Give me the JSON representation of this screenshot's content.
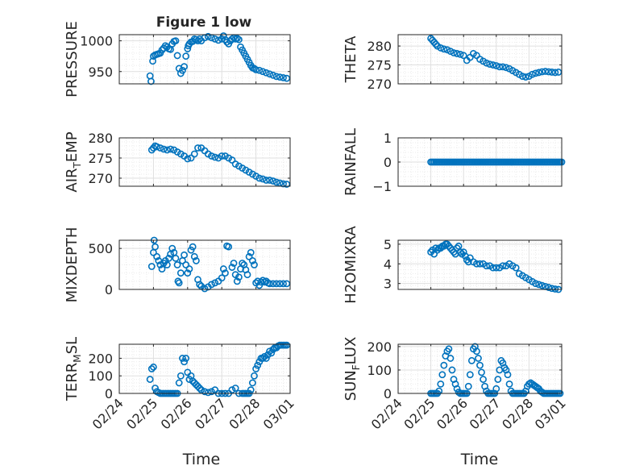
{
  "figure": {
    "title": "Figure 1 low",
    "xlabel": "Time",
    "x_tick_labels": [
      "02/24",
      "02/25",
      "02/26",
      "02/27",
      "02/28",
      "03/01"
    ]
  },
  "colors": {
    "marker": "#0072BD",
    "axis": "#262626",
    "grid": "#dfdfdf",
    "minor_grid": "#ebebeb"
  },
  "chart_data": [
    {
      "type": "scatter",
      "marker": "circle",
      "ylabel": "PRESSURE",
      "ylim": [
        930,
        1010
      ],
      "yticks": [
        950,
        1000
      ],
      "x_range": [
        "02/24",
        "03/01"
      ],
      "grid": "on",
      "x": [
        0.9,
        0.93,
        0.98,
        1.0,
        1.05,
        1.1,
        1.15,
        1.2,
        1.25,
        1.3,
        1.35,
        1.4,
        1.45,
        1.5,
        1.55,
        1.6,
        1.65,
        1.7,
        1.75,
        1.8,
        1.85,
        1.9,
        1.95,
        2.0,
        2.02,
        2.05,
        2.1,
        2.15,
        2.2,
        2.25,
        2.3,
        2.35,
        2.4,
        2.5,
        2.6,
        2.7,
        2.8,
        2.9,
        3.0,
        3.05,
        3.1,
        3.15,
        3.2,
        3.25,
        3.3,
        3.35,
        3.4,
        3.45,
        3.5,
        3.55,
        3.6,
        3.65,
        3.7,
        3.75,
        3.8,
        3.85,
        3.9,
        3.95,
        4.0,
        4.1,
        4.2,
        4.3,
        4.4,
        4.5,
        4.6,
        4.7,
        4.8,
        4.9
      ],
      "y": [
        943,
        934,
        967,
        975,
        977,
        978,
        979,
        980,
        985,
        988,
        992,
        990,
        987,
        986,
        995,
        999,
        1000,
        976,
        955,
        947,
        952,
        958,
        975,
        987,
        992,
        995,
        998,
        999,
        1003,
        1002,
        1000,
        1003,
        1000,
        1005,
        1007,
        1005,
        1003,
        1001,
        1003,
        1008,
        1002,
        998,
        995,
        1000,
        1003,
        1005,
        1003,
        1004,
        1002,
        990,
        985,
        980,
        975,
        970,
        965,
        960,
        956,
        955,
        953,
        952,
        950,
        948,
        946,
        944,
        942,
        941,
        940,
        939
      ]
    },
    {
      "type": "scatter",
      "marker": "circle",
      "ylabel": "THETA",
      "ylim": [
        270,
        283
      ],
      "yticks": [
        270,
        275,
        280
      ],
      "x_range": [
        "02/24",
        "03/01"
      ],
      "grid": "on",
      "x": [
        1.0,
        1.05,
        1.1,
        1.15,
        1.2,
        1.3,
        1.4,
        1.5,
        1.6,
        1.7,
        1.8,
        1.9,
        2.0,
        2.1,
        2.2,
        2.3,
        2.4,
        2.5,
        2.6,
        2.7,
        2.8,
        2.9,
        3.0,
        3.1,
        3.2,
        3.3,
        3.4,
        3.5,
        3.6,
        3.7,
        3.8,
        3.9,
        4.0,
        4.1,
        4.2,
        4.3,
        4.4,
        4.5,
        4.6,
        4.7,
        4.8,
        4.9
      ],
      "y": [
        282.0,
        281.5,
        281.0,
        280.5,
        280.0,
        279.5,
        279.2,
        279.0,
        278.6,
        278.2,
        278.0,
        277.8,
        277.5,
        276.2,
        277.0,
        278.0,
        277.5,
        276.5,
        276.0,
        275.5,
        275.2,
        275.0,
        274.8,
        274.5,
        274.5,
        274.3,
        274.0,
        273.5,
        273.0,
        272.5,
        272.0,
        271.8,
        272.0,
        272.5,
        272.8,
        273.0,
        273.2,
        273.3,
        273.2,
        273.1,
        273.0,
        273.1
      ]
    },
    {
      "type": "scatter",
      "marker": "circle",
      "ylabel": "AIR_TEMP",
      "ylim": [
        268,
        280
      ],
      "yticks": [
        270,
        275,
        280
      ],
      "x_range": [
        "02/24",
        "03/01"
      ],
      "grid": "on",
      "x": [
        0.95,
        1.0,
        1.05,
        1.1,
        1.2,
        1.3,
        1.4,
        1.5,
        1.6,
        1.7,
        1.8,
        1.9,
        2.0,
        2.1,
        2.2,
        2.3,
        2.4,
        2.5,
        2.6,
        2.7,
        2.8,
        2.9,
        3.0,
        3.1,
        3.2,
        3.3,
        3.4,
        3.5,
        3.6,
        3.7,
        3.8,
        3.9,
        4.0,
        4.1,
        4.2,
        4.3,
        4.4,
        4.5,
        4.6,
        4.7,
        4.8,
        4.9
      ],
      "y": [
        277.0,
        277.5,
        278.0,
        277.8,
        277.5,
        277.2,
        277.0,
        277.2,
        277.0,
        276.5,
        276.0,
        275.5,
        274.8,
        275.0,
        276.0,
        277.5,
        277.5,
        276.8,
        276.0,
        275.5,
        275.2,
        275.0,
        275.5,
        275.5,
        275.0,
        274.5,
        273.5,
        273.0,
        272.5,
        272.0,
        271.5,
        271.0,
        270.5,
        270.0,
        269.8,
        269.5,
        269.5,
        269.3,
        269.0,
        268.8,
        268.6,
        268.5
      ]
    },
    {
      "type": "scatter",
      "marker": "circle",
      "ylabel": "RAINFALL",
      "ylim": [
        -1,
        1
      ],
      "yticks": [
        -1,
        0,
        1
      ],
      "x_range": [
        "02/24",
        "03/01"
      ],
      "grid": "on",
      "x_start": 1.0,
      "x_end": 5.0,
      "x_step": 0.05,
      "constant_y": 0
    },
    {
      "type": "scatter",
      "marker": "circle",
      "ylabel": "MIXDEPTH",
      "ylim": [
        0,
        600
      ],
      "yticks": [
        0,
        500
      ],
      "x_range": [
        "02/24",
        "03/01"
      ],
      "grid": "on",
      "x": [
        0.95,
        1.0,
        1.02,
        1.05,
        1.1,
        1.15,
        1.2,
        1.25,
        1.3,
        1.35,
        1.4,
        1.45,
        1.5,
        1.55,
        1.6,
        1.65,
        1.7,
        1.72,
        1.75,
        1.8,
        1.85,
        1.9,
        1.95,
        2.0,
        2.05,
        2.1,
        2.15,
        2.2,
        2.25,
        2.3,
        2.35,
        2.4,
        2.5,
        2.6,
        2.7,
        2.8,
        2.9,
        3.0,
        3.05,
        3.1,
        3.15,
        3.2,
        3.3,
        3.35,
        3.4,
        3.45,
        3.5,
        3.55,
        3.6,
        3.65,
        3.7,
        3.75,
        3.8,
        3.85,
        3.9,
        3.95,
        4.0,
        4.05,
        4.1,
        4.15,
        4.2,
        4.25,
        4.3,
        4.35,
        4.4,
        4.5,
        4.6,
        4.7,
        4.8,
        4.9
      ],
      "y": [
        280,
        450,
        600,
        520,
        400,
        350,
        300,
        250,
        320,
        350,
        300,
        380,
        430,
        500,
        450,
        380,
        300,
        100,
        80,
        200,
        350,
        420,
        300,
        200,
        250,
        480,
        520,
        400,
        350,
        120,
        60,
        40,
        10,
        30,
        60,
        80,
        100,
        140,
        250,
        200,
        530,
        520,
        270,
        320,
        180,
        100,
        150,
        250,
        320,
        300,
        240,
        180,
        400,
        450,
        350,
        300,
        80,
        100,
        50,
        90,
        110,
        90,
        100,
        80,
        70,
        70,
        70,
        70,
        70,
        70
      ]
    },
    {
      "type": "scatter",
      "marker": "circle",
      "ylabel": "H2OMIXRA",
      "ylim": [
        2.7,
        5.2
      ],
      "yticks": [
        3,
        4,
        5
      ],
      "x_range": [
        "02/24",
        "03/01"
      ],
      "grid": "on",
      "x": [
        1.0,
        1.05,
        1.1,
        1.15,
        1.2,
        1.25,
        1.3,
        1.35,
        1.4,
        1.45,
        1.5,
        1.55,
        1.6,
        1.65,
        1.7,
        1.75,
        1.8,
        1.85,
        1.9,
        1.95,
        2.0,
        2.05,
        2.1,
        2.15,
        2.2,
        2.3,
        2.4,
        2.5,
        2.6,
        2.7,
        2.8,
        2.9,
        3.0,
        3.1,
        3.2,
        3.3,
        3.4,
        3.5,
        3.6,
        3.7,
        3.8,
        3.9,
        4.0,
        4.1,
        4.2,
        4.3,
        4.4,
        4.5,
        4.6,
        4.7,
        4.8,
        4.9
      ],
      "y": [
        4.6,
        4.7,
        4.5,
        4.8,
        4.7,
        4.8,
        4.8,
        4.9,
        4.9,
        5.0,
        5.0,
        4.9,
        4.8,
        4.7,
        4.6,
        4.5,
        4.8,
        4.9,
        4.6,
        4.5,
        4.6,
        4.4,
        4.2,
        4.1,
        4.3,
        4.1,
        4.0,
        4.0,
        4.0,
        3.9,
        3.9,
        3.8,
        3.8,
        3.8,
        3.9,
        3.9,
        4.0,
        3.9,
        3.8,
        3.5,
        3.4,
        3.3,
        3.2,
        3.1,
        3.0,
        2.95,
        2.9,
        2.85,
        2.8,
        2.75,
        2.72,
        2.7
      ]
    },
    {
      "type": "scatter",
      "marker": "circle",
      "ylabel": "TERR_MSL",
      "ylim": [
        0,
        280
      ],
      "yticks": [
        0,
        100,
        200
      ],
      "x_range": [
        "02/24",
        "03/01"
      ],
      "grid": "on",
      "x": [
        0.9,
        0.95,
        1.0,
        1.05,
        1.1,
        1.15,
        1.2,
        1.25,
        1.3,
        1.35,
        1.4,
        1.45,
        1.5,
        1.55,
        1.6,
        1.65,
        1.7,
        1.75,
        1.8,
        1.85,
        1.9,
        1.95,
        2.0,
        2.05,
        2.1,
        2.15,
        2.2,
        2.25,
        2.3,
        2.35,
        2.4,
        2.5,
        2.6,
        2.7,
        2.8,
        2.9,
        3.0,
        3.1,
        3.2,
        3.3,
        3.4,
        3.5,
        3.6,
        3.65,
        3.7,
        3.75,
        3.8,
        3.85,
        3.9,
        3.95,
        4.0,
        4.05,
        4.1,
        4.15,
        4.2,
        4.25,
        4.3,
        4.35,
        4.4,
        4.45,
        4.5,
        4.55,
        4.6,
        4.65,
        4.7,
        4.75,
        4.8,
        4.85,
        4.9
      ],
      "y": [
        80,
        140,
        150,
        30,
        10,
        5,
        0,
        0,
        0,
        0,
        0,
        0,
        0,
        0,
        0,
        0,
        0,
        60,
        100,
        200,
        180,
        200,
        120,
        80,
        100,
        70,
        60,
        50,
        40,
        30,
        20,
        10,
        5,
        10,
        20,
        0,
        0,
        0,
        0,
        20,
        30,
        0,
        0,
        0,
        0,
        0,
        0,
        20,
        60,
        100,
        140,
        160,
        180,
        200,
        200,
        210,
        200,
        220,
        240,
        230,
        250,
        260,
        260,
        270,
        275,
        275,
        275,
        275,
        275
      ]
    },
    {
      "type": "scatter",
      "marker": "circle",
      "ylabel": "SUN_FLUX",
      "ylim": [
        0,
        210
      ],
      "yticks": [
        0,
        100,
        200
      ],
      "x_range": [
        "02/24",
        "03/01"
      ],
      "grid": "on",
      "x": [
        1.0,
        1.05,
        1.1,
        1.15,
        1.2,
        1.25,
        1.3,
        1.35,
        1.4,
        1.45,
        1.5,
        1.55,
        1.6,
        1.65,
        1.7,
        1.75,
        1.8,
        1.85,
        1.9,
        1.95,
        2.0,
        2.05,
        2.1,
        2.15,
        2.2,
        2.25,
        2.3,
        2.35,
        2.4,
        2.45,
        2.5,
        2.55,
        2.6,
        2.65,
        2.7,
        2.75,
        2.8,
        2.85,
        2.9,
        2.95,
        3.0,
        3.05,
        3.1,
        3.15,
        3.2,
        3.25,
        3.3,
        3.35,
        3.4,
        3.45,
        3.5,
        3.55,
        3.6,
        3.65,
        3.7,
        3.75,
        3.8,
        3.85,
        3.9,
        3.95,
        4.0,
        4.05,
        4.1,
        4.15,
        4.2,
        4.25,
        4.3,
        4.35,
        4.4,
        4.45,
        4.5,
        4.55,
        4.6,
        4.65,
        4.7,
        4.75,
        4.8,
        4.85,
        4.9,
        4.95
      ],
      "y": [
        0,
        0,
        0,
        0,
        0,
        10,
        40,
        80,
        120,
        160,
        180,
        190,
        150,
        100,
        60,
        40,
        20,
        5,
        0,
        0,
        0,
        0,
        0,
        30,
        80,
        140,
        190,
        200,
        180,
        150,
        120,
        90,
        60,
        30,
        10,
        0,
        0,
        0,
        0,
        0,
        20,
        60,
        100,
        140,
        130,
        110,
        100,
        80,
        40,
        10,
        0,
        0,
        0,
        0,
        0,
        0,
        0,
        0,
        10,
        30,
        40,
        45,
        40,
        35,
        30,
        25,
        20,
        10,
        5,
        0,
        0,
        0,
        0,
        0,
        0,
        0,
        0,
        0,
        0,
        0
      ]
    }
  ]
}
